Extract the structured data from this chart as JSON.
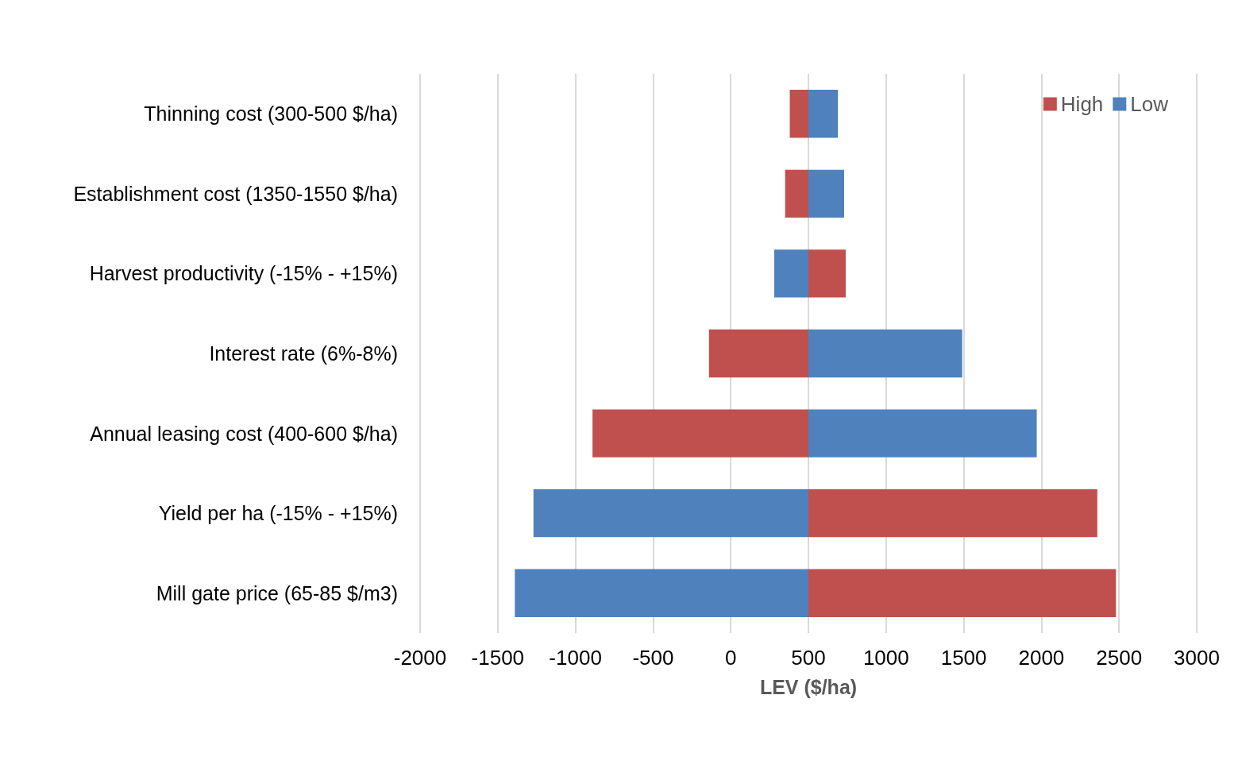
{
  "chart_data": {
    "type": "bar",
    "orientation": "horizontal",
    "xlabel": "LEV ($/ha)",
    "categories": [
      "Thinning cost (300-500 $/ha)",
      "Establishment cost (1350-1550 $/ha)",
      "Harvest productivity (-15% - +15%)",
      "Interest rate (6%-8%)",
      "Annual leasing cost (400-600 $/ha)",
      "Yield per ha (-15% - +15%)",
      "Mill gate price (65-85 $/m3)"
    ],
    "series": [
      {
        "name": "High",
        "color": "#c0504d",
        "base": [
          380,
          350,
          500,
          -140,
          -890,
          500,
          500
        ],
        "values": [
          120,
          150,
          240,
          640,
          1390,
          1860,
          1980
        ]
      },
      {
        "name": "Low",
        "color": "#4f81bd",
        "base": [
          500,
          500,
          280,
          500,
          500,
          -1270,
          -1390
        ],
        "values": [
          190,
          230,
          220,
          990,
          1470,
          1770,
          1890
        ]
      }
    ],
    "xlim": [
      -2000,
      3000
    ],
    "xticks": [
      -2000,
      -1500,
      -1000,
      -500,
      0,
      500,
      1000,
      1500,
      2000,
      2500,
      3000
    ],
    "grid": "x",
    "legend": "top right"
  }
}
